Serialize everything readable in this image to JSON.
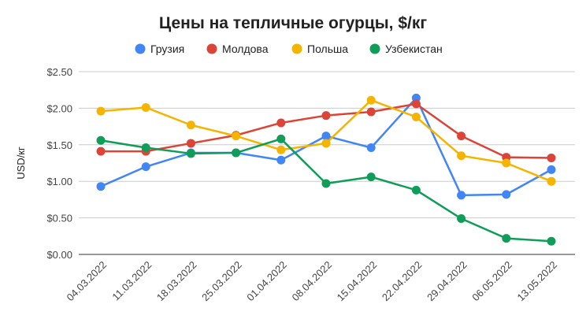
{
  "chart_data": {
    "type": "line",
    "title": "Цены на тепличные огурцы, $/кг",
    "xlabel": "",
    "ylabel": "USD/кг",
    "categories": [
      "04.03.2022",
      "11.03.2022",
      "18.03.2022",
      "25.03.2022",
      "01.04.2022",
      "08.04.2022",
      "15.04.2022",
      "22.04.2022",
      "29.04.2022",
      "06.05.2022",
      "13.05.2022"
    ],
    "ylim": [
      0,
      2.5
    ],
    "yticks": [
      0,
      0.5,
      1.0,
      1.5,
      2.0,
      2.5
    ],
    "ytick_labels": [
      "$0.00",
      "$0.50",
      "$1.00",
      "$1.50",
      "$2.00",
      "$2.50"
    ],
    "grid": true,
    "legend_position": "top",
    "series": [
      {
        "name": "Грузия",
        "color": "#4285F4",
        "values": [
          0.93,
          1.2,
          1.39,
          1.39,
          1.29,
          1.62,
          1.46,
          2.14,
          0.81,
          0.82,
          1.16
        ]
      },
      {
        "name": "Молдова",
        "color": "#DB4437",
        "values": [
          1.41,
          1.41,
          1.52,
          1.63,
          1.8,
          1.9,
          1.95,
          2.06,
          1.62,
          1.33,
          1.32
        ]
      },
      {
        "name": "Польша",
        "color": "#F4B400",
        "values": [
          1.96,
          2.01,
          1.77,
          1.62,
          1.43,
          1.52,
          2.11,
          1.88,
          1.35,
          1.25,
          1.0
        ]
      },
      {
        "name": "Узбекистан",
        "color": "#0F9D58",
        "values": [
          1.56,
          1.46,
          1.38,
          1.39,
          1.58,
          0.97,
          1.06,
          0.88,
          0.49,
          0.22,
          0.18
        ]
      }
    ]
  }
}
